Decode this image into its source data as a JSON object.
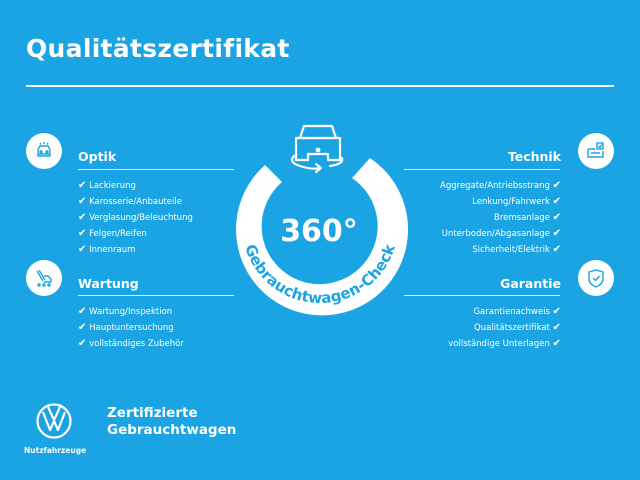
{
  "title": "Qualitätszertifikat",
  "colors": {
    "background": "#1ba4e4",
    "foreground": "#ffffff"
  },
  "check_icon": "✔",
  "center": {
    "number": "360°",
    "arc_text": "Gebrauchtwagen-Check",
    "icon": "car-360-icon"
  },
  "sections": {
    "optik": {
      "title": "Optik",
      "icon": "car-front-icon",
      "items": [
        "Lackierung",
        "Karosserie/Anbauteile",
        "Verglasung/Beleuchtung",
        "Felgen/Reifen",
        "Innenraum"
      ]
    },
    "wartung": {
      "title": "Wartung",
      "icon": "service-tools-icon",
      "items": [
        "Wartung/Inspektion",
        "Hauptuntersuchung",
        "vollständiges Zubehör"
      ]
    },
    "technik": {
      "title": "Technik",
      "icon": "engine-check-icon",
      "items": [
        "Aggregate/Antriebsstrang",
        "Lenkung/Fahrwerk",
        "Bremsanlage",
        "Unterboden/Abgasanlage",
        "Sicherheit/Elektrik"
      ]
    },
    "garantie": {
      "title": "Garantie",
      "icon": "shield-check-icon",
      "items": [
        "Garantienachweis",
        "Qualitätszertifikat",
        "vollständige Unterlagen"
      ]
    }
  },
  "footer": {
    "logo_sub": "Nutzfahrzeuge",
    "line1": "Zertifizierte",
    "line2": "Gebrauchtwagen"
  }
}
